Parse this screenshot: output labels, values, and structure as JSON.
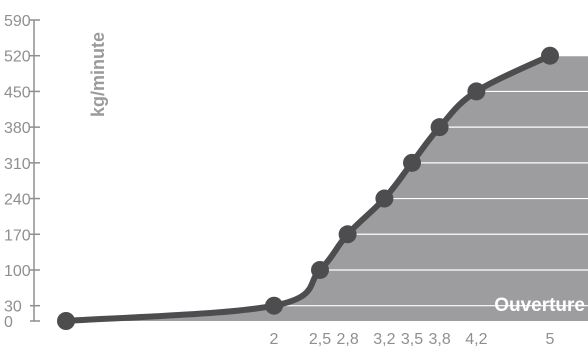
{
  "chart_data": {
    "type": "area",
    "title": "",
    "xlabel": "Ouverture",
    "ylabel": "kg/minute",
    "ylim": [
      0,
      590
    ],
    "y_ticks": [
      "0",
      "30",
      "100",
      "170",
      "240",
      "310",
      "380",
      "450",
      "520",
      "590"
    ],
    "x_tick_labels": [
      "2",
      "2,5",
      "2,8",
      "3,2",
      "3,5",
      "3,8",
      "4,2",
      "5"
    ],
    "series": [
      {
        "points": [
          {
            "x": 0,
            "y": 0
          },
          {
            "x": 2,
            "y": 30
          },
          {
            "x": 2.5,
            "y": 100
          },
          {
            "x": 2.8,
            "y": 170
          },
          {
            "x": 3.2,
            "y": 240
          },
          {
            "x": 3.5,
            "y": 310
          },
          {
            "x": 3.8,
            "y": 380
          },
          {
            "x": 4.2,
            "y": 450
          },
          {
            "x": 5,
            "y": 520
          }
        ]
      }
    ],
    "grid": true,
    "colors": {
      "area": "#9d9da0",
      "line": "#4d4d4f",
      "marker": "#4d4d4f",
      "grid": "#ffffff",
      "text": "#8f8f8f"
    }
  }
}
